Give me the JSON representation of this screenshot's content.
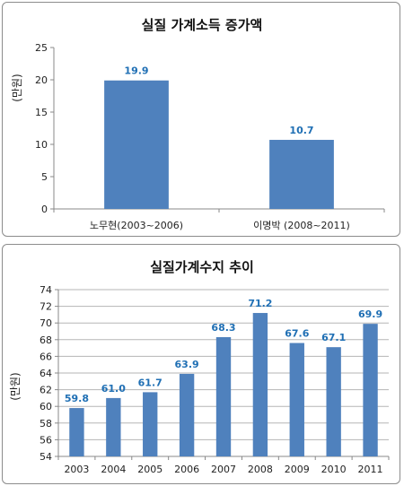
{
  "chart_data": [
    {
      "type": "bar",
      "title": "실질 가계소득 증가액",
      "ylabel": "(만원)",
      "xlabel": "",
      "categories": [
        "노무현(2003~2006)",
        "이명박 (2008~2011)"
      ],
      "values": [
        19.9,
        10.7
      ],
      "value_labels": [
        "19.9",
        "10.7"
      ],
      "ylim": [
        0,
        25
      ],
      "yticks": [
        0,
        5,
        10,
        15,
        20,
        25
      ],
      "grid": false,
      "bar_color": "#4f81bd",
      "label_color": "#1f6fb4"
    },
    {
      "type": "bar",
      "title": "실질가계수지  추이",
      "ylabel": "(만원)",
      "xlabel": "",
      "categories": [
        "2003",
        "2004",
        "2005",
        "2006",
        "2007",
        "2008",
        "2009",
        "2010",
        "2011"
      ],
      "values": [
        59.8,
        61.0,
        61.7,
        63.9,
        68.3,
        71.2,
        67.6,
        67.1,
        69.9
      ],
      "value_labels": [
        "59.8",
        "61.0",
        "61.7",
        "63.9",
        "68.3",
        "71.2",
        "67.6",
        "67.1",
        "69.9"
      ],
      "ylim": [
        54,
        74
      ],
      "yticks": [
        54,
        56,
        58,
        60,
        62,
        64,
        66,
        68,
        70,
        72,
        74
      ],
      "grid": true,
      "bar_color": "#4f81bd",
      "label_color": "#1f6fb4"
    }
  ]
}
